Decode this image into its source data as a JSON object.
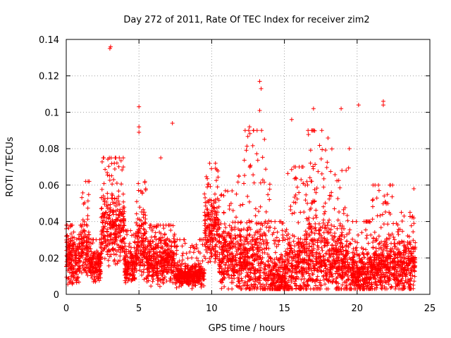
{
  "chart_data": {
    "type": "scatter",
    "title": "Day 272 of 2011, Rate Of TEC Index for receiver zim2",
    "xlabel": "GPS time / hours",
    "ylabel": "ROTI / TECUs",
    "xlim": [
      0,
      25
    ],
    "ylim": [
      0,
      0.14
    ],
    "xticks": [
      0,
      5,
      10,
      15,
      20,
      25
    ],
    "yticks": [
      0,
      0.02,
      0.04,
      0.06,
      0.08,
      0.1,
      0.12,
      0.14
    ],
    "xtick_labels": [
      "0",
      "5",
      "10",
      "15",
      "20",
      "25"
    ],
    "ytick_labels": [
      "0",
      "0.02",
      "0.04",
      "0.06",
      "0.08",
      "0.1",
      "0.12",
      "0.14"
    ],
    "grid": true,
    "marker": "plus",
    "color": "#ff0000",
    "notable_points": [
      {
        "x": 3.0,
        "y": 0.135
      },
      {
        "x": 3.05,
        "y": 0.136
      },
      {
        "x": 5.0,
        "y": 0.103
      },
      {
        "x": 5.0,
        "y": 0.092
      },
      {
        "x": 5.0,
        "y": 0.089
      },
      {
        "x": 6.5,
        "y": 0.075
      },
      {
        "x": 7.3,
        "y": 0.094
      },
      {
        "x": 13.3,
        "y": 0.117
      },
      {
        "x": 13.4,
        "y": 0.113
      },
      {
        "x": 13.3,
        "y": 0.101
      },
      {
        "x": 12.6,
        "y": 0.092
      },
      {
        "x": 15.5,
        "y": 0.096
      },
      {
        "x": 17.0,
        "y": 0.102
      },
      {
        "x": 18.9,
        "y": 0.102
      },
      {
        "x": 20.1,
        "y": 0.104
      },
      {
        "x": 21.8,
        "y": 0.106
      },
      {
        "x": 21.8,
        "y": 0.104
      },
      {
        "x": 23.9,
        "y": 0.058
      },
      {
        "x": 0.0,
        "y": 0.036
      },
      {
        "x": 0.0,
        "y": 0.032
      }
    ],
    "segments": [
      {
        "x0": 0.0,
        "x1": 1.0,
        "base": 0.018,
        "spread": 0.022,
        "peak": 0.038
      },
      {
        "x0": 1.0,
        "x1": 1.6,
        "base": 0.025,
        "spread": 0.025,
        "peak": 0.062
      },
      {
        "x0": 1.6,
        "x1": 2.4,
        "base": 0.015,
        "spread": 0.015,
        "peak": 0.03
      },
      {
        "x0": 2.4,
        "x1": 4.0,
        "base": 0.035,
        "spread": 0.03,
        "peak": 0.075
      },
      {
        "x0": 4.0,
        "x1": 4.8,
        "base": 0.015,
        "spread": 0.015,
        "peak": 0.035
      },
      {
        "x0": 4.8,
        "x1": 5.5,
        "base": 0.028,
        "spread": 0.03,
        "peak": 0.062
      },
      {
        "x0": 5.5,
        "x1": 7.5,
        "base": 0.018,
        "spread": 0.02,
        "peak": 0.038
      },
      {
        "x0": 7.5,
        "x1": 9.5,
        "base": 0.01,
        "spread": 0.01,
        "peak": 0.03
      },
      {
        "x0": 9.5,
        "x1": 10.5,
        "base": 0.035,
        "spread": 0.03,
        "peak": 0.072
      },
      {
        "x0": 10.5,
        "x1": 12.0,
        "base": 0.02,
        "spread": 0.03,
        "peak": 0.065
      },
      {
        "x0": 12.0,
        "x1": 14.0,
        "base": 0.018,
        "spread": 0.035,
        "peak": 0.09
      },
      {
        "x0": 14.0,
        "x1": 15.2,
        "base": 0.01,
        "spread": 0.02,
        "peak": 0.04
      },
      {
        "x0": 15.2,
        "x1": 16.5,
        "base": 0.015,
        "spread": 0.03,
        "peak": 0.07
      },
      {
        "x0": 16.5,
        "x1": 18.0,
        "base": 0.02,
        "spread": 0.035,
        "peak": 0.09
      },
      {
        "x0": 18.0,
        "x1": 19.5,
        "base": 0.018,
        "spread": 0.03,
        "peak": 0.08
      },
      {
        "x0": 19.5,
        "x1": 21.0,
        "base": 0.012,
        "spread": 0.02,
        "peak": 0.04
      },
      {
        "x0": 21.0,
        "x1": 22.5,
        "base": 0.015,
        "spread": 0.025,
        "peak": 0.06
      },
      {
        "x0": 22.5,
        "x1": 24.0,
        "base": 0.015,
        "spread": 0.025,
        "peak": 0.045
      }
    ]
  }
}
